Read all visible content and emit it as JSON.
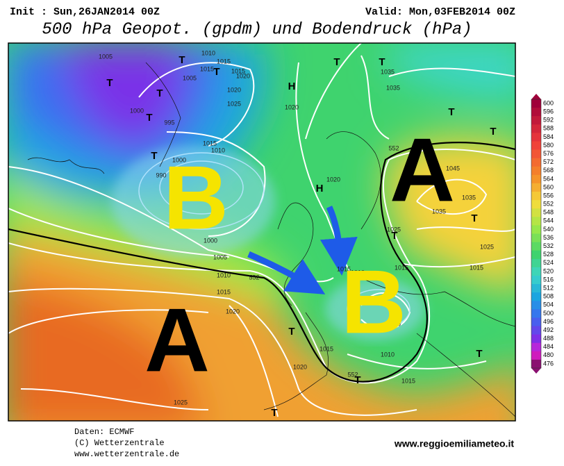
{
  "header": {
    "init": "Init : Sun,26JAN2014 00Z",
    "valid": "Valid: Mon,03FEB2014 00Z",
    "title": "500 hPa Geopot. (gpdm) und Bodendruck (hPa)"
  },
  "big_letters": [
    "B",
    "A",
    "A",
    "B"
  ],
  "isobar_labels": [
    "1005",
    "1010",
    "1015",
    "1015",
    "1015",
    "1020",
    "1005",
    "1020",
    "1025",
    "1020",
    "1000",
    "995",
    "1015",
    "1010",
    "1000",
    "990",
    "1035",
    "1035",
    "1045",
    "1020",
    "1035",
    "1035",
    "1025",
    "1025",
    "1000",
    "1005",
    "1010",
    "1015",
    "1020",
    "1015",
    "1010",
    "1015",
    "1015",
    "1005",
    "1015",
    "1010",
    "1020",
    "1015",
    "1025",
    "552",
    "552",
    "552"
  ],
  "pressure_markers": [
    "T",
    "T",
    "T",
    "T",
    "T",
    "T",
    "T",
    "T",
    "H",
    "H",
    "T",
    "T",
    "T",
    "T",
    "T",
    "T",
    "T",
    "T"
  ],
  "colorbar_labels": [
    600,
    596,
    592,
    588,
    584,
    580,
    576,
    572,
    568,
    564,
    560,
    556,
    552,
    548,
    544,
    540,
    536,
    532,
    528,
    524,
    520,
    516,
    512,
    508,
    504,
    500,
    496,
    492,
    488,
    484,
    480,
    476
  ],
  "footer": {
    "source": "Daten: ECMWF",
    "copyright": "(C) Wetterzentrale",
    "url": "www.wetterzentrale.de",
    "site": "www.reggioemiliameteo.it"
  }
}
